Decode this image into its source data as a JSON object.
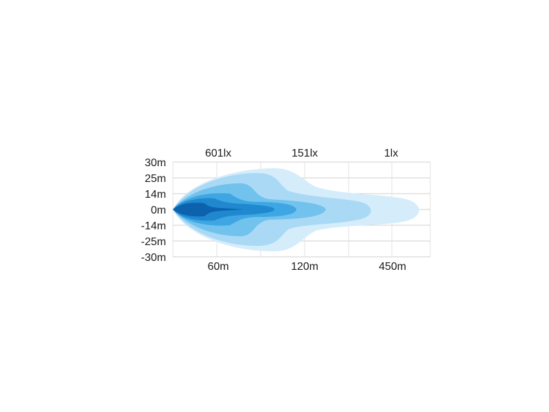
{
  "diagram": {
    "top_labels": [
      "601lx",
      "151lx",
      "1lx"
    ],
    "bottom_labels": [
      "60m",
      "120m",
      "450m"
    ],
    "y_labels": [
      "30m",
      "25m",
      "14m",
      "0m",
      "-14m",
      "-25m",
      "-30m"
    ],
    "grid": true,
    "colors": [
      "#d5ecfa",
      "#aad9f5",
      "#72c2ee",
      "#3ea6e2",
      "#1f88cf",
      "#0c62ad"
    ]
  }
}
